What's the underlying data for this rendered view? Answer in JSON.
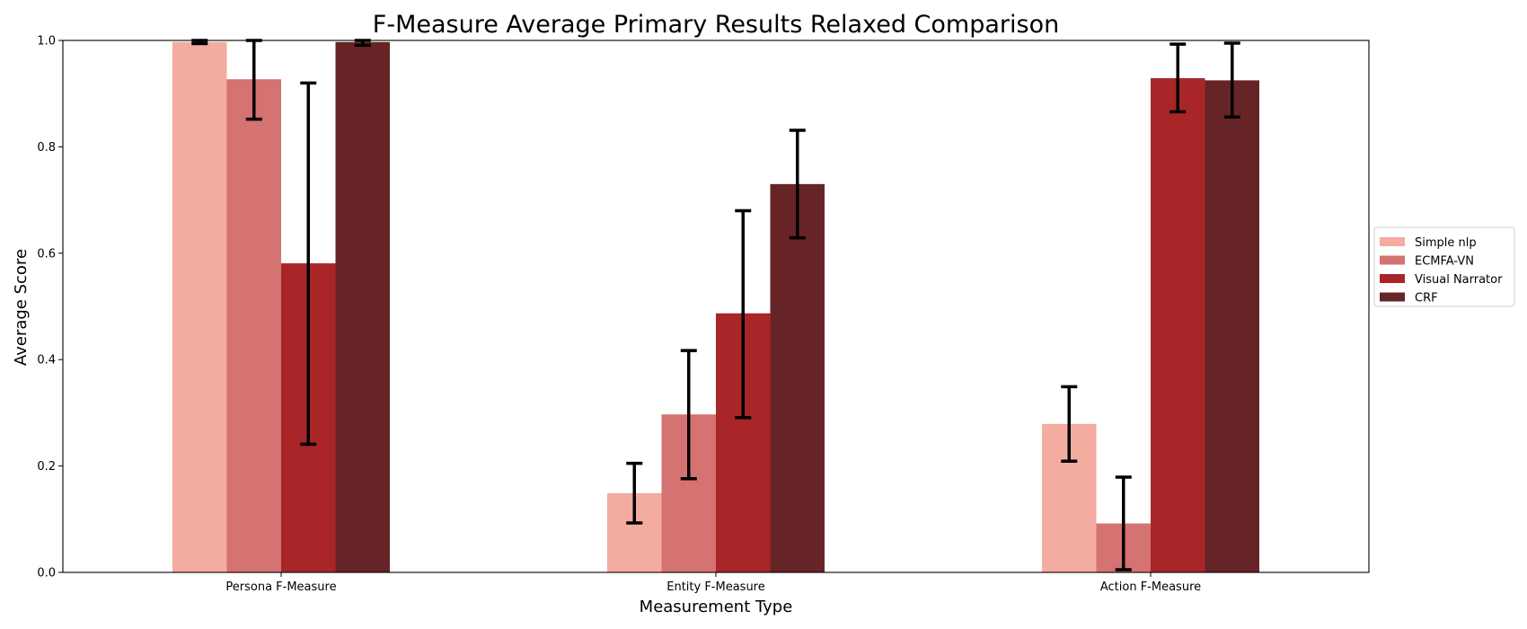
{
  "chart_data": {
    "type": "bar",
    "title": "F-Measure Average Primary Results Relaxed Comparison",
    "xlabel": "Measurement Type",
    "ylabel": "Average Score",
    "categories": [
      "Persona F-Measure",
      "Entity F-Measure",
      "Action F-Measure"
    ],
    "ylim": [
      0,
      1
    ],
    "yticks": [
      "0.0",
      "0.2",
      "0.4",
      "0.6",
      "0.8",
      "1.0"
    ],
    "grid": false,
    "legend_position": "right, outside plot",
    "series": [
      {
        "name": "Simple nlp",
        "color": "#f4aba0",
        "values": [
          0.997,
          0.149,
          0.279
        ],
        "err_low": [
          0.994,
          0.093,
          0.209
        ],
        "err_high": [
          1.0,
          0.205,
          0.349
        ]
      },
      {
        "name": "ECMFA-VN",
        "color": "#d47371",
        "values": [
          0.927,
          0.297,
          0.092
        ],
        "err_low": [
          0.852,
          0.176,
          0.005
        ],
        "err_high": [
          1.0,
          0.417,
          0.179
        ]
      },
      {
        "name": "Visual Narrator",
        "color": "#a82628",
        "values": [
          0.581,
          0.487,
          0.929
        ],
        "err_low": [
          0.241,
          0.291,
          0.866
        ],
        "err_high": [
          0.92,
          0.68,
          0.993
        ]
      },
      {
        "name": "CRF",
        "color": "#672427",
        "values": [
          0.997,
          0.73,
          0.925
        ],
        "err_low": [
          0.991,
          0.629,
          0.856
        ],
        "err_high": [
          1.0,
          0.831,
          0.995
        ]
      }
    ]
  }
}
